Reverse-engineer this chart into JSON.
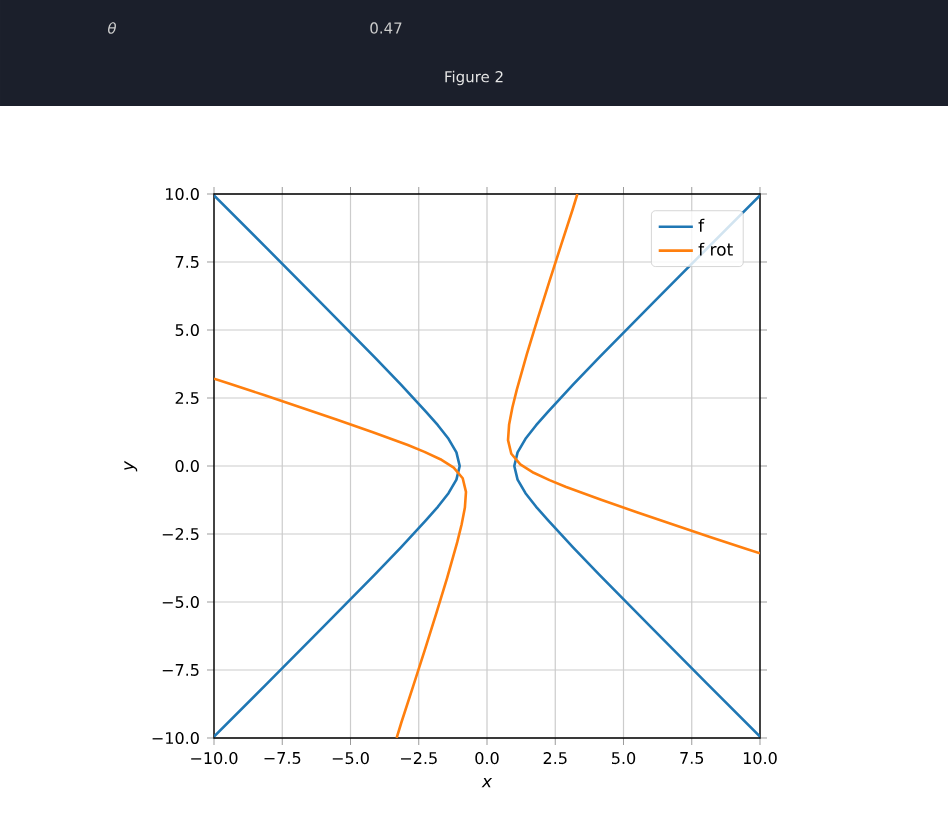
{
  "chart_data": {
    "type": "line",
    "title": "Figure 2",
    "xlabel": "x",
    "ylabel": "y",
    "annotations": [
      "θ",
      "0.47"
    ],
    "xlim": [
      -10,
      10
    ],
    "ylim": [
      -10,
      10
    ],
    "xticks": [
      {
        "value": -10,
        "label": "−10.0"
      },
      {
        "value": -7.5,
        "label": "−7.5"
      },
      {
        "value": -5,
        "label": "−5.0"
      },
      {
        "value": -2.5,
        "label": "−2.5"
      },
      {
        "value": 0,
        "label": "0.0"
      },
      {
        "value": 2.5,
        "label": "2.5"
      },
      {
        "value": 5,
        "label": "5.0"
      },
      {
        "value": 7.5,
        "label": "7.5"
      },
      {
        "value": 10,
        "label": "10.0"
      }
    ],
    "yticks": [
      {
        "value": -10,
        "label": "−10.0"
      },
      {
        "value": -7.5,
        "label": "−7.5"
      },
      {
        "value": -5,
        "label": "−5.0"
      },
      {
        "value": -2.5,
        "label": "−2.5"
      },
      {
        "value": 0,
        "label": "0.0"
      },
      {
        "value": 2.5,
        "label": "2.5"
      },
      {
        "value": 5,
        "label": "5.0"
      },
      {
        "value": 7.5,
        "label": "7.5"
      },
      {
        "value": 10,
        "label": "10.0"
      }
    ],
    "grid": true,
    "legend": "top right",
    "series": [
      {
        "name": "f",
        "color": "#1f77b4",
        "x": [
          10,
          8.06,
          6.08,
          4.12,
          3.16,
          2.24,
          1.8,
          1.41,
          1.12,
          1,
          1.12,
          1.41,
          1.8,
          2.24,
          3.16,
          4.12,
          6.08,
          7.07,
          10,
          null,
          -10,
          -8.06,
          -6.08,
          -4.12,
          -3.16,
          -2.24,
          -1.8,
          -1.41,
          -1.12,
          -1,
          -1.12,
          -1.41,
          -1.8,
          -2.24,
          -3.16,
          -4.12,
          -6.08,
          -8.06,
          -10
        ],
        "values": [
          -9.95,
          -8,
          -6,
          -4,
          -3,
          -2,
          -1.5,
          -1,
          -0.5,
          0,
          0.5,
          1,
          1.5,
          2,
          3,
          4,
          6,
          7,
          9.95,
          null,
          -9.95,
          -8,
          -6,
          -4,
          -3,
          -2,
          -1.5,
          -1,
          -0.5,
          0,
          0.5,
          1,
          1.5,
          2,
          3,
          4,
          6,
          8,
          9.95
        ]
      },
      {
        "name": "f rot",
        "color": "#ff7f0e",
        "x": [
          10,
          9.48,
          8.14,
          5.49,
          4.18,
          2.9,
          2.29,
          1.71,
          1.22,
          0.89,
          0.77,
          0.81,
          0.93,
          1.09,
          1.46,
          1.86,
          2.28,
          2.71,
          3.14,
          3.31,
          null,
          -10,
          -9.48,
          -8.14,
          -5.49,
          -4.18,
          -2.9,
          -2.29,
          -1.71,
          -1.22,
          -0.89,
          -0.77,
          -0.81,
          -0.93,
          -1.09,
          -1.46,
          -1.86,
          -2.28,
          -2.71,
          -3.14,
          -3.31
        ],
        "values": [
          -3.21,
          -3.04,
          -2.6,
          -1.7,
          -1.24,
          -0.77,
          -0.52,
          -0.25,
          0.06,
          0.45,
          0.95,
          1.53,
          2.15,
          2.8,
          4.11,
          5.43,
          6.77,
          8.11,
          9.44,
          10,
          null,
          3.21,
          3.04,
          2.6,
          1.7,
          1.24,
          0.77,
          0.52,
          0.25,
          -0.06,
          -0.45,
          -0.95,
          -1.53,
          -2.15,
          -2.8,
          -4.11,
          -5.43,
          -6.77,
          -8.11,
          -9.44,
          -10
        ]
      }
    ]
  }
}
